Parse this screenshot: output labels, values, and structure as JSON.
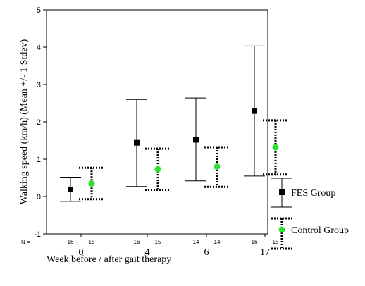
{
  "chart_data": {
    "type": "scatter",
    "title": "",
    "xlabel": "Week before / after gait therapy",
    "ylabel": "Walking speed (km/h) (Mean +/- 1 Stdev)",
    "categories": [
      "0",
      "4",
      "6",
      "17"
    ],
    "ylim": [
      -1,
      5
    ],
    "yticks": [
      "-1",
      "0",
      "1",
      "2",
      "3",
      "4",
      "5"
    ],
    "n_label": "N =",
    "series": [
      {
        "name": "FES Group",
        "color": "#000000",
        "marker": "square",
        "error_style": "solid",
        "n": [
          "16",
          "16",
          "14",
          "16"
        ],
        "mean": [
          0.19,
          1.44,
          1.52,
          2.29
        ],
        "lower": [
          -0.13,
          0.27,
          0.42,
          0.55
        ],
        "upper": [
          0.52,
          2.6,
          2.64,
          4.03
        ]
      },
      {
        "name": "Control Group",
        "color": "#33dd33",
        "marker": "circle",
        "error_style": "dotted",
        "n": [
          "15",
          "15",
          "14",
          "15"
        ],
        "mean": [
          0.35,
          0.73,
          0.8,
          1.32
        ],
        "lower": [
          -0.07,
          0.18,
          0.26,
          0.59
        ],
        "upper": [
          0.77,
          1.28,
          1.32,
          2.04
        ]
      }
    ]
  }
}
